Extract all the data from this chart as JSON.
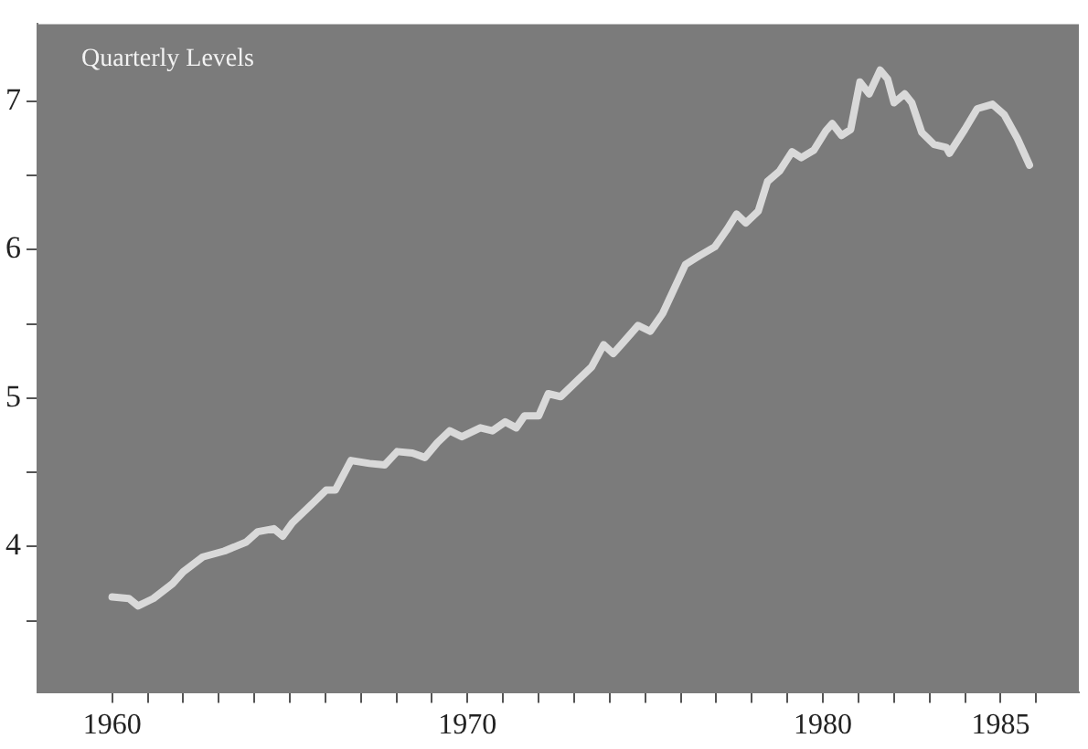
{
  "chart_data": {
    "type": "line",
    "title": "Quarterly Levels",
    "xlim": [
      1957.9,
      1987.2
    ],
    "xticks": [
      1960,
      {
        "value": 1961,
        "label": null
      },
      {
        "value": 1962,
        "label": null
      },
      {
        "value": 1963,
        "label": null
      },
      {
        "value": 1964,
        "label": null
      },
      {
        "value": 1965,
        "label": null
      },
      {
        "value": 1966,
        "label": null
      },
      {
        "value": 1967,
        "label": null
      },
      {
        "value": 1968,
        "label": null
      },
      {
        "value": 1969,
        "label": null
      },
      1970,
      {
        "value": 1971,
        "label": null
      },
      {
        "value": 1972,
        "label": null
      },
      {
        "value": 1973,
        "label": null
      },
      {
        "value": 1974,
        "label": null
      },
      {
        "value": 1975,
        "label": null
      },
      {
        "value": 1976,
        "label": null
      },
      {
        "value": 1977,
        "label": null
      },
      {
        "value": 1978,
        "label": null
      },
      {
        "value": 1979,
        "label": null
      },
      1980,
      {
        "value": 1981,
        "label": null
      },
      {
        "value": 1982,
        "label": null
      },
      {
        "value": 1983,
        "label": null
      },
      {
        "value": 1984,
        "label": null
      },
      1985,
      {
        "value": 1986,
        "label": null
      }
    ],
    "ylim": [
      3.02,
      7.52
    ],
    "yticks": [
      {
        "value": 3.5,
        "label": null
      },
      4,
      {
        "value": 4.5,
        "label": null
      },
      5,
      {
        "value": 5.5,
        "label": null
      },
      6,
      {
        "value": 6.5,
        "label": null
      },
      7
    ],
    "grid": false,
    "legend": false,
    "marker": "none",
    "line_style": "solid",
    "series": [
      {
        "color": "#d9d9d9",
        "x": [
          1960.0,
          1960.47,
          1960.73,
          1961.16,
          1961.7,
          1962.0,
          1962.55,
          1963.16,
          1963.77,
          1964.1,
          1964.55,
          1964.8,
          1965.07,
          1965.68,
          1966.02,
          1966.28,
          1966.72,
          1967.24,
          1967.67,
          1968.02,
          1968.45,
          1968.8,
          1969.15,
          1969.5,
          1969.84,
          1970.36,
          1970.7,
          1971.06,
          1971.37,
          1971.6,
          1972.0,
          1972.27,
          1972.62,
          1973.14,
          1973.49,
          1973.83,
          1974.1,
          1974.36,
          1974.8,
          1975.14,
          1975.49,
          1976.13,
          1976.53,
          1976.96,
          1977.31,
          1977.57,
          1977.83,
          1978.18,
          1978.44,
          1978.78,
          1979.13,
          1979.39,
          1979.74,
          1980.08,
          1980.26,
          1980.52,
          1980.78,
          1981.04,
          1981.3,
          1981.61,
          1981.82,
          1982.0,
          1982.3,
          1982.5,
          1982.78,
          1983.12,
          1983.47,
          1983.56,
          1983.99,
          1984.34,
          1984.77,
          1985.1,
          1985.47,
          1985.81
        ],
        "values": [
          3.66,
          3.65,
          3.6,
          3.65,
          3.75,
          3.83,
          3.93,
          3.97,
          4.03,
          4.1,
          4.12,
          4.07,
          4.16,
          4.3,
          4.38,
          4.38,
          4.58,
          4.56,
          4.55,
          4.64,
          4.63,
          4.6,
          4.7,
          4.78,
          4.74,
          4.8,
          4.78,
          4.84,
          4.8,
          4.88,
          4.88,
          5.03,
          5.01,
          5.13,
          5.21,
          5.36,
          5.3,
          5.37,
          5.49,
          5.45,
          5.57,
          5.9,
          5.96,
          6.02,
          6.14,
          6.24,
          6.18,
          6.26,
          6.46,
          6.53,
          6.66,
          6.62,
          6.67,
          6.8,
          6.85,
          6.77,
          6.81,
          7.13,
          7.05,
          7.21,
          7.15,
          6.99,
          7.05,
          6.99,
          6.79,
          6.71,
          6.69,
          6.65,
          6.81,
          6.95,
          6.98,
          6.91,
          6.75,
          6.57
        ]
      }
    ]
  }
}
